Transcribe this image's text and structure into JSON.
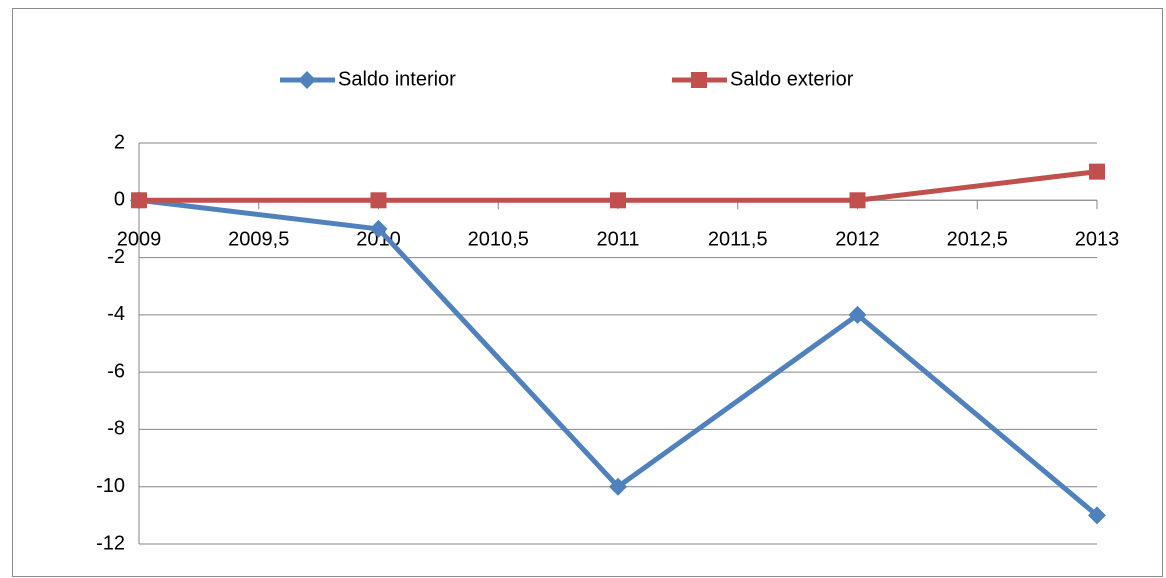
{
  "chart_data": {
    "type": "line",
    "x": [
      2009,
      2010,
      2011,
      2012,
      2013
    ],
    "series": [
      {
        "name": "Saldo interior",
        "color": "#4f81bd",
        "marker": "diamond",
        "values": [
          0,
          -1,
          -10,
          -4,
          -11
        ]
      },
      {
        "name": "Saldo exterior",
        "color": "#c0504d",
        "marker": "square",
        "values": [
          0,
          0,
          0,
          0,
          1
        ]
      }
    ],
    "xlim": [
      2009,
      2013
    ],
    "xticks": [
      2009,
      {
        "value": 2009.5,
        "label": "2009,5"
      },
      2010,
      {
        "value": 2010.5,
        "label": "2010,5"
      },
      2011,
      {
        "value": 2011.5,
        "label": "2011,5"
      },
      2012,
      {
        "value": 2012.5,
        "label": "2012,5"
      },
      2013
    ],
    "ylim": [
      -12,
      2
    ],
    "yticks": [
      -12,
      -10,
      -8,
      -6,
      -4,
      -2,
      0,
      2
    ],
    "grid": true,
    "legend": "top"
  }
}
